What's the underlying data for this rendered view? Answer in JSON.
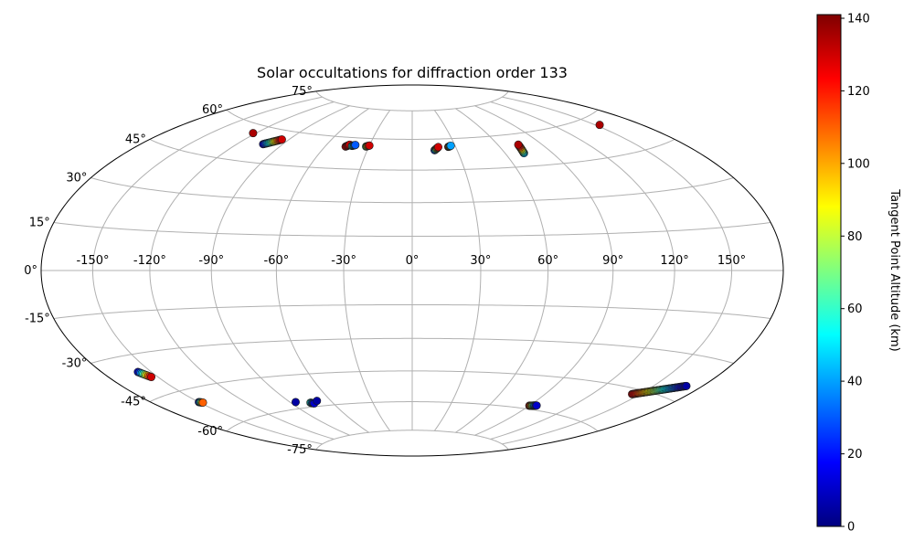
{
  "chart_data": {
    "type": "scatter",
    "projection": "hammer",
    "title": "Solar occultations for diffraction order 133",
    "grid": true,
    "x_tick_labels": [
      "-150°",
      "-120°",
      "-90°",
      "-60°",
      "-30°",
      "0°",
      "30°",
      "60°",
      "90°",
      "120°",
      "150°"
    ],
    "x_ticks": [
      -150,
      -120,
      -90,
      -60,
      -30,
      0,
      30,
      60,
      90,
      120,
      150
    ],
    "y_tick_labels": [
      "75°",
      "60°",
      "45°",
      "30°",
      "15°",
      "0°",
      "-15°",
      "-30°",
      "-45°",
      "-60°",
      "-75°"
    ],
    "y_ticks": [
      75,
      60,
      45,
      30,
      15,
      0,
      -15,
      -30,
      -45,
      -60,
      -75
    ],
    "colorbar": {
      "label": "Tangent Point Altitude (km)",
      "min": 0,
      "max": 141,
      "ticks": [
        0,
        20,
        40,
        60,
        80,
        100,
        120,
        140
      ],
      "tick_labels": [
        "0",
        "20",
        "40",
        "60",
        "80",
        "100",
        "120",
        "140"
      ],
      "colormap": "jet",
      "colors": [
        "#00007f",
        "#0000ff",
        "#007fff",
        "#00ffff",
        "#7fff7f",
        "#ffff00",
        "#ff7f00",
        "#ff0000",
        "#7f0000"
      ]
    },
    "series": [
      {
        "lon_start": -122,
        "lat_start": 56.5,
        "lon_end": -122,
        "lat_end": 56.5,
        "alt_start": 135,
        "alt_end": 135
      },
      {
        "lon_start": -103,
        "lat_start": 53,
        "lon_end": -95,
        "lat_end": 56,
        "alt_start": 10,
        "alt_end": 130
      },
      {
        "lon_start": -46,
        "lat_start": 55.5,
        "lon_end": -44,
        "lat_end": 56.5,
        "alt_start": 130,
        "alt_end": 130
      },
      {
        "lon_start": -42,
        "lat_start": 56,
        "lon_end": -40,
        "lat_end": 56.5,
        "alt_start": 60,
        "alt_end": 30
      },
      {
        "lon_start": -32,
        "lat_start": 56,
        "lon_end": -30,
        "lat_end": 56.5,
        "alt_start": 60,
        "alt_end": 130
      },
      {
        "lon_start": 15,
        "lat_start": 54.5,
        "lon_end": 18,
        "lat_end": 56,
        "alt_start": 20,
        "alt_end": 130
      },
      {
        "lon_start": 25,
        "lat_start": 56,
        "lon_end": 27,
        "lat_end": 56.5,
        "alt_start": 130,
        "alt_end": 40
      },
      {
        "lon_start": 72,
        "lat_start": 51,
        "lon_end": 74,
        "lat_end": 55,
        "alt_start": 40,
        "alt_end": 135
      },
      {
        "lon_start": 153,
        "lat_start": 56.5,
        "lon_end": 153,
        "lat_end": 56.5,
        "alt_start": 135,
        "alt_end": 135
      },
      {
        "lon_start": -158,
        "lat_start": -36,
        "lon_end": -154,
        "lat_end": -38.5,
        "alt_start": 10,
        "alt_end": 130
      },
      {
        "lon_start": -150,
        "lat_start": -50,
        "lon_end": -148,
        "lat_end": -50.5,
        "alt_start": 10,
        "alt_end": 110
      },
      {
        "lon_start": -86,
        "lat_start": -57,
        "lon_end": -86,
        "lat_end": -57,
        "alt_start": 5,
        "alt_end": 5
      },
      {
        "lon_start": -76,
        "lat_start": -58,
        "lon_end": -74,
        "lat_end": -58.5,
        "alt_start": 60,
        "alt_end": 10
      },
      {
        "lon_start": -70,
        "lat_start": -57.5,
        "lon_end": -70,
        "lat_end": -57.5,
        "alt_start": 5,
        "alt_end": 5
      },
      {
        "lon_start": 90,
        "lat_start": -58.5,
        "lon_end": 95,
        "lat_end": -58,
        "alt_start": 130,
        "alt_end": 10
      },
      {
        "lon_start": 145,
        "lat_start": -47,
        "lon_end": 170,
        "lat_end": -40,
        "alt_start": 130,
        "alt_end": 5
      }
    ]
  }
}
